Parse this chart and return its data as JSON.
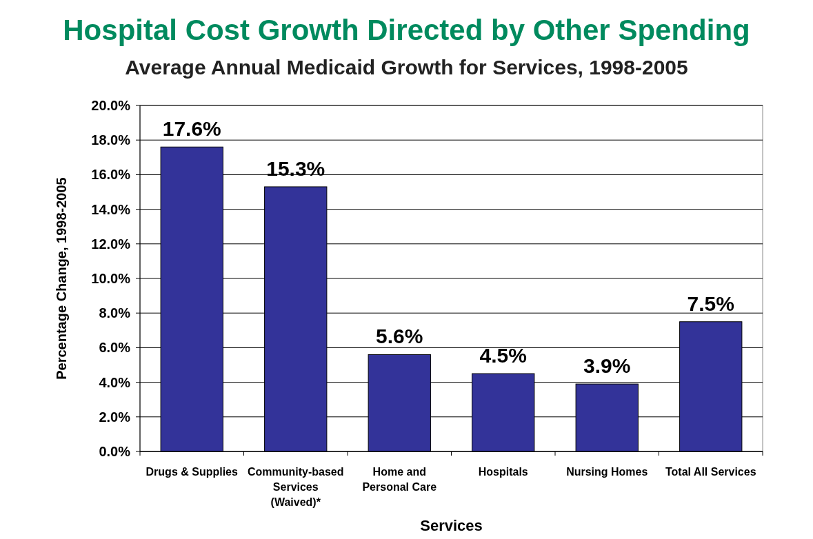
{
  "chart_data": {
    "type": "bar",
    "title": "Hospital Cost Growth Directed by Other Spending",
    "subtitle": "Average Annual Medicaid Growth for Services, 1998-2005",
    "xlabel": "Services",
    "ylabel": "Percentage Change, 1998-2005",
    "categories": [
      "Drugs & Supplies",
      "Community-based\nServices\n(Waived)*",
      "Home and\nPersonal Care",
      "Hospitals",
      "Nursing Homes",
      "Total All Services"
    ],
    "values": [
      17.6,
      15.3,
      5.6,
      4.5,
      3.9,
      7.5
    ],
    "value_labels": [
      "17.6%",
      "15.3%",
      "5.6%",
      "4.5%",
      "3.9%",
      "7.5%"
    ],
    "color": "#333399",
    "ylim": [
      0,
      20
    ],
    "yticks": [
      {
        "value": 0,
        "label": "0.0%"
      },
      {
        "value": 2,
        "label": "2.0%"
      },
      {
        "value": 4,
        "label": "4.0%"
      },
      {
        "value": 6,
        "label": "6.0%"
      },
      {
        "value": 8,
        "label": "8.0%"
      },
      {
        "value": 10,
        "label": "10.0%"
      },
      {
        "value": 12,
        "label": "12.0%"
      },
      {
        "value": 14,
        "label": "14.0%"
      },
      {
        "value": 16,
        "label": "16.0%"
      },
      {
        "value": 18,
        "label": "18.0%"
      },
      {
        "value": 20,
        "label": "20.0%"
      }
    ],
    "grid": "y"
  }
}
